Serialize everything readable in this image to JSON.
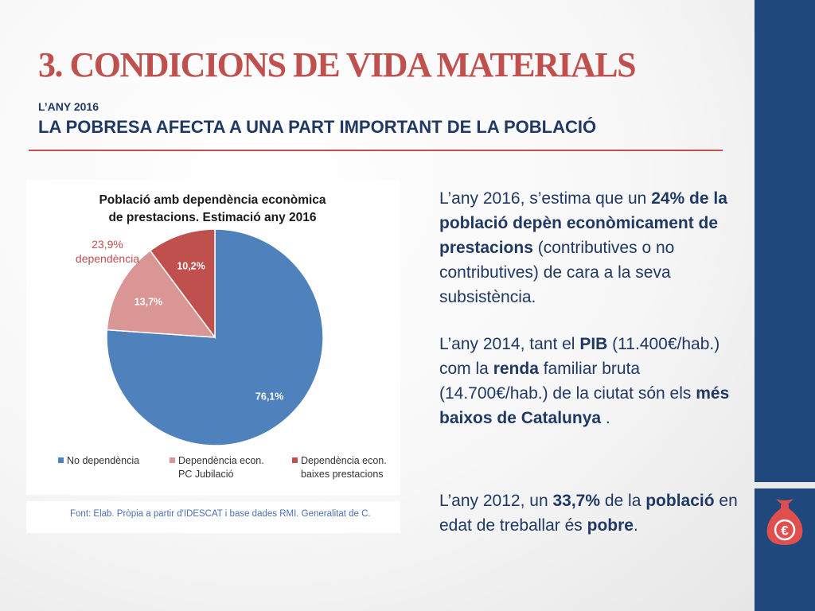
{
  "slide": {
    "title": "3. CONDICIONS DE VIDA MATERIALS",
    "kicker": "L’ANY 2016",
    "subtitle": "LA POBRESA AFECTA A UNA PART IMPORTANT DE LA POBLACIÓ"
  },
  "chart_data": {
    "type": "pie",
    "title_lines": [
      "Població amb dependència econòmica",
      "de prestacions. Estimació any 2016"
    ],
    "slices": [
      {
        "name": "No dependència",
        "value": 76.1,
        "label": "76,1%",
        "color": "#4f81bd"
      },
      {
        "name": "Dependència econ. PC Jubilació",
        "value": 13.7,
        "label": "13,7%",
        "color": "#d99694"
      },
      {
        "name": "Dependència econ. baixes prestacions",
        "value": 10.2,
        "label": "10,2%",
        "color": "#c0504d"
      }
    ],
    "legend": [
      {
        "line1": "No dependència",
        "line2": "",
        "color": "#4f81bd"
      },
      {
        "line1": "Dependència econ.",
        "line2": "PC Jubilació",
        "color": "#d99694"
      },
      {
        "line1": "Dependència econ.",
        "line2": "baixes prestacions",
        "color": "#c0504d"
      }
    ],
    "legend_position": "bottom",
    "annotation": {
      "line1": "23,9%",
      "line2": "dependència",
      "color": "#c0504d"
    }
  },
  "source": "Font: Elab. Pròpia a partir d'IDESCAT i base dades RMI. Generalitat de C.",
  "paragraphs": {
    "p1": [
      {
        "text": "L’any 2016, s’estima que un ",
        "bold": false
      },
      {
        "text": "24% de la població depèn econòmicament de prestacions",
        "bold": true
      },
      {
        "text": " (contributives o no contributives) de cara a la seva subsistència.",
        "bold": false
      }
    ],
    "p2": [
      {
        "text": "L’any 2014, tant el ",
        "bold": false
      },
      {
        "text": "PIB",
        "bold": true
      },
      {
        "text": " (11.400€/hab.) com la ",
        "bold": false
      },
      {
        "text": "renda",
        "bold": true
      },
      {
        "text": " familiar bruta (14.700€/hab.) de la ciutat són els ",
        "bold": false
      },
      {
        "text": "més baixos de Catalunya",
        "bold": true
      },
      {
        "text": " .",
        "bold": false
      }
    ],
    "p3": [
      {
        "text": "L’any 2012, un ",
        "bold": false
      },
      {
        "text": "33,7%",
        "bold": true
      },
      {
        "text": " de la ",
        "bold": false
      },
      {
        "text": "població",
        "bold": true
      },
      {
        "text": " en edat de treballar és ",
        "bold": false
      },
      {
        "text": "pobre",
        "bold": true
      },
      {
        "text": ".",
        "bold": false
      }
    ]
  },
  "icon": {
    "name": "money-bag-euro-icon",
    "symbol": "€",
    "color": "#e04e4e"
  }
}
